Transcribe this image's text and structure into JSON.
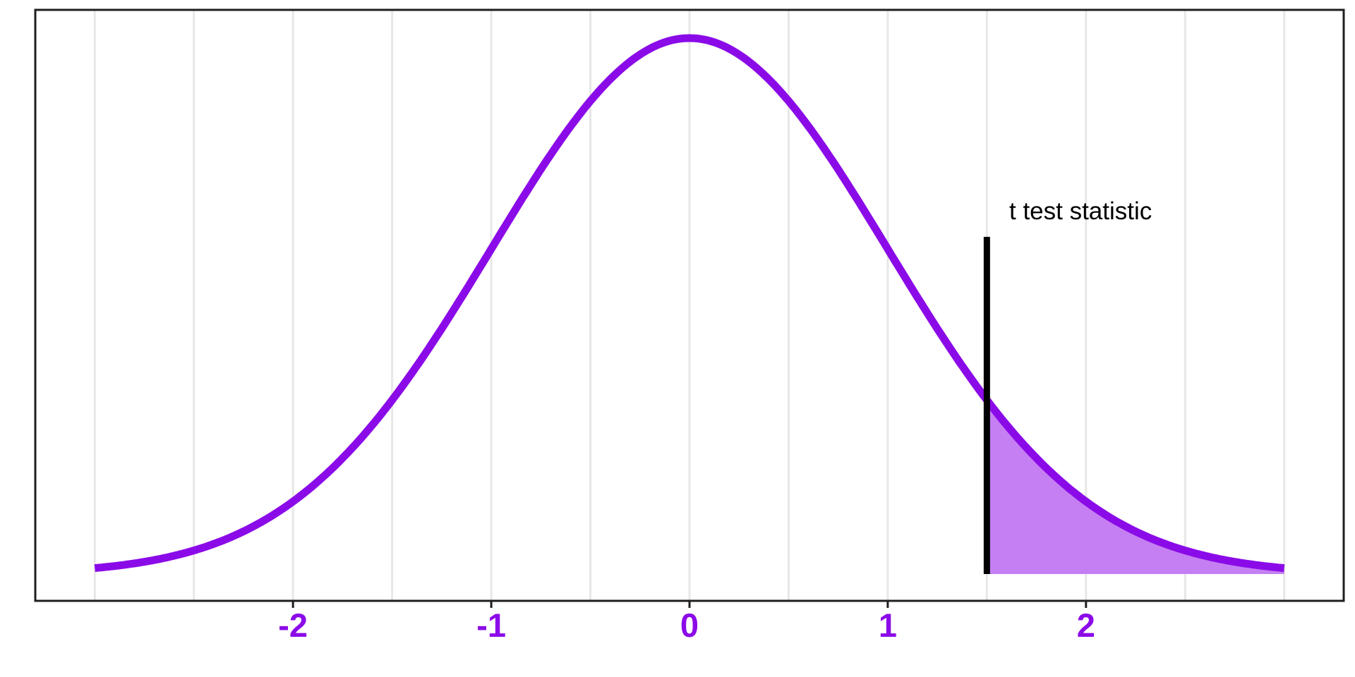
{
  "chart_data": {
    "type": "area",
    "title": "",
    "xlabel": "",
    "ylabel": "",
    "description": "Bell-shaped density curve (standard normal / t distribution) with right tail shaded beyond the t test statistic",
    "distribution": {
      "name": "normal",
      "mean": 0,
      "sd": 1,
      "peak_density": 0.3989
    },
    "x_domain": [
      -3,
      3
    ],
    "xlim": [
      -3.3,
      3.3
    ],
    "ylim": [
      0,
      0.42
    ],
    "grid": "vertical-only",
    "legend_position": "none",
    "gridlines_x": [
      -3,
      -2.5,
      -2,
      -1.5,
      -1,
      -0.5,
      0,
      0.5,
      1,
      1.5,
      2,
      2.5,
      3
    ],
    "x_ticks": [
      {
        "value": -2,
        "label": "-2"
      },
      {
        "value": -1,
        "label": "-1"
      },
      {
        "value": 0,
        "label": "0"
      },
      {
        "value": 1,
        "label": "1"
      },
      {
        "value": 2,
        "label": "2"
      }
    ],
    "t_statistic": {
      "value": 1.5,
      "label": "t test statistic",
      "line_top_density": 0.251
    },
    "shaded_tail": {
      "from": 1.5,
      "to": 3,
      "side": "right"
    },
    "colors": {
      "curve": "#8B0BE8",
      "tail_fill": "#C57FF2",
      "tick_label": "#8B0BE8",
      "statistic_line": "#000000",
      "annotation_text": "#000000",
      "gridline": "#E7E7E7",
      "panel_border": "#1F1F1F",
      "tick_mark": "#1F1F1F",
      "background": "#FFFFFF"
    }
  }
}
